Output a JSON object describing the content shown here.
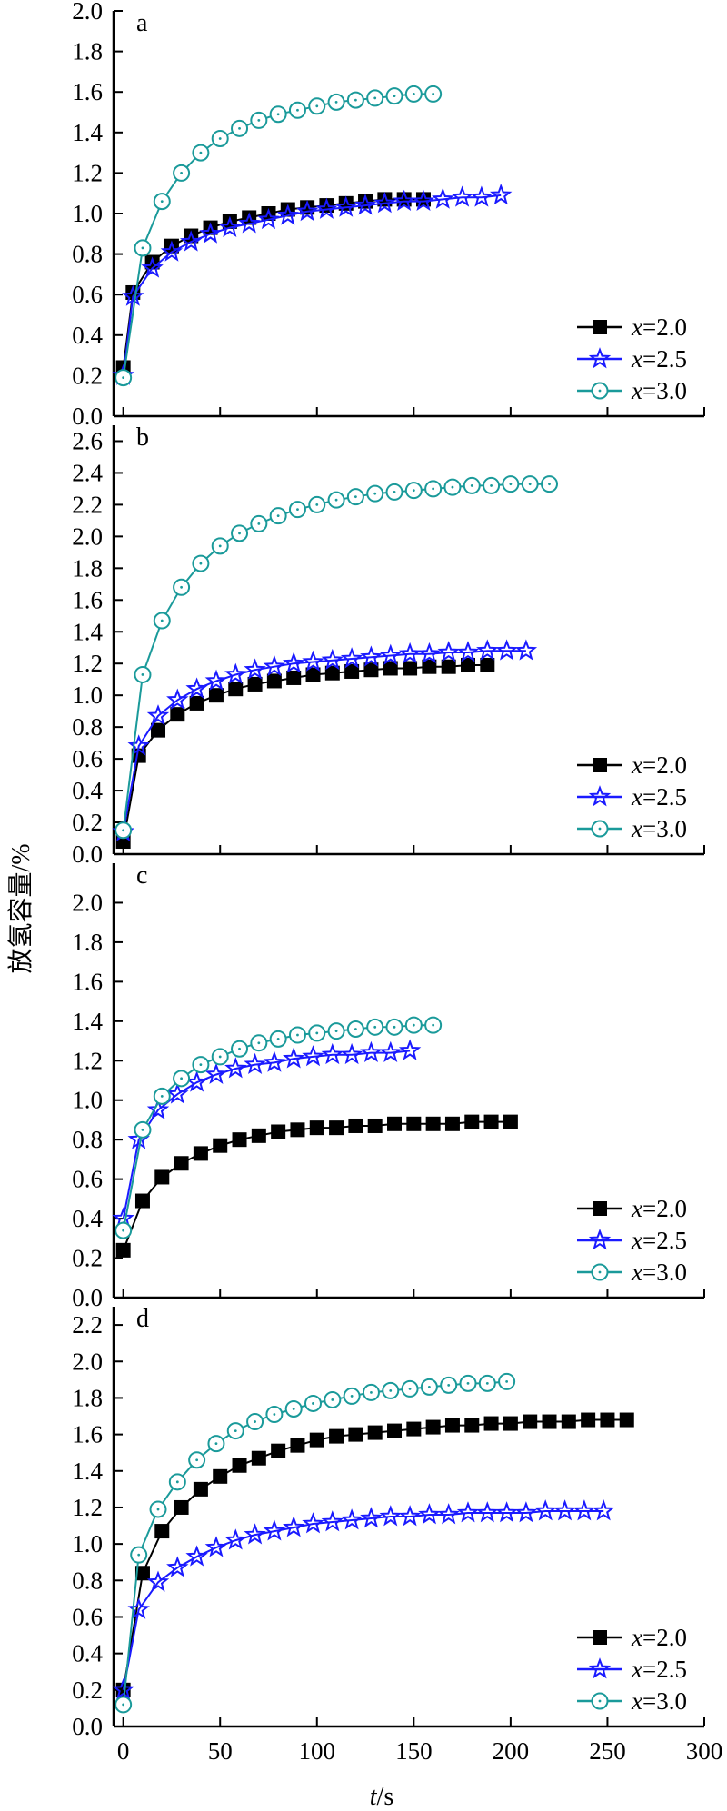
{
  "figure": {
    "ylabel": "放氢容量/%",
    "xlabel_var": "t",
    "xlabel_unit": "/s",
    "x_ticks": [
      "0",
      "50",
      "100",
      "150",
      "200",
      "250",
      "300"
    ]
  },
  "chart_data": [
    {
      "type": "line",
      "panel": "a",
      "xlim": [
        -5,
        300
      ],
      "ylim": [
        0,
        2.0
      ],
      "y_ticks": [
        "0.0",
        "0.2",
        "0.4",
        "0.6",
        "0.8",
        "1.0",
        "1.2",
        "1.4",
        "1.6",
        "1.8",
        "2.0"
      ],
      "legend_position": "bottom-right",
      "series": [
        {
          "name": "x=2.0",
          "marker": "square",
          "color": "#000000",
          "x": [
            0,
            5,
            15,
            25,
            35,
            45,
            55,
            65,
            75,
            85,
            95,
            105,
            115,
            125,
            135,
            145,
            155
          ],
          "y": [
            0.24,
            0.61,
            0.76,
            0.84,
            0.89,
            0.93,
            0.96,
            0.98,
            1.0,
            1.02,
            1.03,
            1.04,
            1.05,
            1.06,
            1.07,
            1.07,
            1.07
          ]
        },
        {
          "name": "x=2.5",
          "marker": "star",
          "color": "#1a1aff",
          "x": [
            0,
            5,
            15,
            25,
            35,
            45,
            55,
            65,
            75,
            85,
            95,
            105,
            115,
            125,
            135,
            145,
            155,
            165,
            175,
            185,
            195
          ],
          "y": [
            0.2,
            0.59,
            0.73,
            0.81,
            0.86,
            0.9,
            0.93,
            0.95,
            0.97,
            0.99,
            1.01,
            1.02,
            1.03,
            1.04,
            1.05,
            1.06,
            1.06,
            1.07,
            1.08,
            1.08,
            1.09
          ]
        },
        {
          "name": "x=3.0",
          "marker": "circle",
          "color": "#1a9a9a",
          "x": [
            0,
            10,
            20,
            30,
            40,
            50,
            60,
            70,
            80,
            90,
            100,
            110,
            120,
            130,
            140,
            150,
            160
          ],
          "y": [
            0.19,
            0.83,
            1.06,
            1.2,
            1.3,
            1.37,
            1.42,
            1.46,
            1.49,
            1.51,
            1.53,
            1.55,
            1.56,
            1.57,
            1.58,
            1.59,
            1.59
          ]
        }
      ]
    },
    {
      "type": "line",
      "panel": "b",
      "xlim": [
        -5,
        300
      ],
      "ylim": [
        0,
        2.7
      ],
      "y_ticks": [
        "0.0",
        "0.2",
        "0.4",
        "0.6",
        "0.8",
        "1.0",
        "1.2",
        "1.4",
        "1.6",
        "1.8",
        "2.0",
        "2.2",
        "2.4",
        "2.6"
      ],
      "legend_position": "bottom-right",
      "series": [
        {
          "name": "x=2.0",
          "marker": "square",
          "color": "#000000",
          "x": [
            0,
            8,
            18,
            28,
            38,
            48,
            58,
            68,
            78,
            88,
            98,
            108,
            118,
            128,
            138,
            148,
            158,
            168,
            178,
            188
          ],
          "y": [
            0.08,
            0.62,
            0.78,
            0.88,
            0.95,
            1.0,
            1.04,
            1.07,
            1.09,
            1.11,
            1.13,
            1.14,
            1.15,
            1.16,
            1.17,
            1.17,
            1.18,
            1.18,
            1.19,
            1.19
          ]
        },
        {
          "name": "x=2.5",
          "marker": "star",
          "color": "#1a1aff",
          "x": [
            0,
            8,
            18,
            28,
            38,
            48,
            58,
            68,
            78,
            88,
            98,
            108,
            118,
            128,
            138,
            148,
            158,
            168,
            178,
            188,
            198,
            208
          ],
          "y": [
            0.14,
            0.68,
            0.87,
            0.97,
            1.04,
            1.09,
            1.13,
            1.16,
            1.18,
            1.2,
            1.21,
            1.22,
            1.23,
            1.24,
            1.25,
            1.26,
            1.26,
            1.27,
            1.27,
            1.28,
            1.28,
            1.28
          ]
        },
        {
          "name": "x=3.0",
          "marker": "circle",
          "color": "#1a9a9a",
          "x": [
            0,
            10,
            20,
            30,
            40,
            50,
            60,
            70,
            80,
            90,
            100,
            110,
            120,
            130,
            140,
            150,
            160,
            170,
            180,
            190,
            200,
            210,
            220
          ],
          "y": [
            0.15,
            1.13,
            1.47,
            1.68,
            1.83,
            1.94,
            2.02,
            2.08,
            2.13,
            2.17,
            2.2,
            2.23,
            2.25,
            2.27,
            2.28,
            2.29,
            2.3,
            2.31,
            2.32,
            2.32,
            2.33,
            2.33,
            2.33
          ]
        }
      ]
    },
    {
      "type": "line",
      "panel": "c",
      "xlim": [
        -5,
        300
      ],
      "ylim": [
        0,
        2.2
      ],
      "y_ticks": [
        "0.0",
        "0.2",
        "0.4",
        "0.6",
        "0.8",
        "1.0",
        "1.2",
        "1.4",
        "1.6",
        "1.8",
        "2.0"
      ],
      "legend_position": "bottom-right",
      "series": [
        {
          "name": "x=2.0",
          "marker": "square",
          "color": "#000000",
          "x": [
            0,
            10,
            20,
            30,
            40,
            50,
            60,
            70,
            80,
            90,
            100,
            110,
            120,
            130,
            140,
            150,
            160,
            170,
            180,
            190,
            200
          ],
          "y": [
            0.24,
            0.49,
            0.61,
            0.68,
            0.73,
            0.77,
            0.8,
            0.82,
            0.84,
            0.85,
            0.86,
            0.86,
            0.87,
            0.87,
            0.88,
            0.88,
            0.88,
            0.88,
            0.89,
            0.89,
            0.89
          ]
        },
        {
          "name": "x=2.5",
          "marker": "star",
          "color": "#1a1aff",
          "x": [
            0,
            8,
            18,
            28,
            38,
            48,
            58,
            68,
            78,
            88,
            98,
            108,
            118,
            128,
            138,
            148
          ],
          "y": [
            0.4,
            0.8,
            0.95,
            1.03,
            1.09,
            1.13,
            1.16,
            1.18,
            1.19,
            1.21,
            1.22,
            1.23,
            1.23,
            1.24,
            1.24,
            1.25
          ]
        },
        {
          "name": "x=3.0",
          "marker": "circle",
          "color": "#1a9a9a",
          "x": [
            0,
            10,
            20,
            30,
            40,
            50,
            60,
            70,
            80,
            90,
            100,
            110,
            120,
            130,
            140,
            150,
            160
          ],
          "y": [
            0.34,
            0.85,
            1.02,
            1.11,
            1.18,
            1.22,
            1.26,
            1.29,
            1.31,
            1.33,
            1.34,
            1.35,
            1.36,
            1.37,
            1.37,
            1.38,
            1.38
          ]
        }
      ]
    },
    {
      "type": "line",
      "panel": "d",
      "xlim": [
        -5,
        300
      ],
      "ylim": [
        0,
        2.3
      ],
      "y_ticks": [
        "0.0",
        "0.2",
        "0.4",
        "0.6",
        "0.8",
        "1.0",
        "1.2",
        "1.4",
        "1.6",
        "1.8",
        "2.0",
        "2.2"
      ],
      "legend_position": "bottom-right",
      "series": [
        {
          "name": "x=2.0",
          "marker": "square",
          "color": "#000000",
          "x": [
            0,
            10,
            20,
            30,
            40,
            50,
            60,
            70,
            80,
            90,
            100,
            110,
            120,
            130,
            140,
            150,
            160,
            170,
            180,
            190,
            200,
            210,
            220,
            230,
            240,
            250,
            260
          ],
          "y": [
            0.2,
            0.84,
            1.07,
            1.2,
            1.3,
            1.37,
            1.43,
            1.47,
            1.51,
            1.54,
            1.57,
            1.59,
            1.6,
            1.61,
            1.62,
            1.63,
            1.64,
            1.65,
            1.65,
            1.66,
            1.66,
            1.67,
            1.67,
            1.67,
            1.68,
            1.68,
            1.68
          ]
        },
        {
          "name": "x=2.5",
          "marker": "star",
          "color": "#1a1aff",
          "x": [
            0,
            8,
            18,
            28,
            38,
            48,
            58,
            68,
            78,
            88,
            98,
            108,
            118,
            128,
            138,
            148,
            158,
            168,
            178,
            188,
            198,
            208,
            218,
            228,
            238,
            248
          ],
          "y": [
            0.2,
            0.64,
            0.79,
            0.87,
            0.93,
            0.98,
            1.02,
            1.05,
            1.07,
            1.09,
            1.11,
            1.12,
            1.13,
            1.14,
            1.15,
            1.15,
            1.16,
            1.16,
            1.17,
            1.17,
            1.17,
            1.17,
            1.18,
            1.18,
            1.18,
            1.18
          ]
        },
        {
          "name": "x=3.0",
          "marker": "circle",
          "color": "#1a9a9a",
          "x": [
            0,
            8,
            18,
            28,
            38,
            48,
            58,
            68,
            78,
            88,
            98,
            108,
            118,
            128,
            138,
            148,
            158,
            168,
            178,
            188,
            198
          ],
          "y": [
            0.12,
            0.94,
            1.19,
            1.34,
            1.46,
            1.55,
            1.62,
            1.67,
            1.71,
            1.74,
            1.77,
            1.79,
            1.81,
            1.83,
            1.84,
            1.85,
            1.86,
            1.87,
            1.88,
            1.88,
            1.89
          ]
        }
      ]
    }
  ]
}
